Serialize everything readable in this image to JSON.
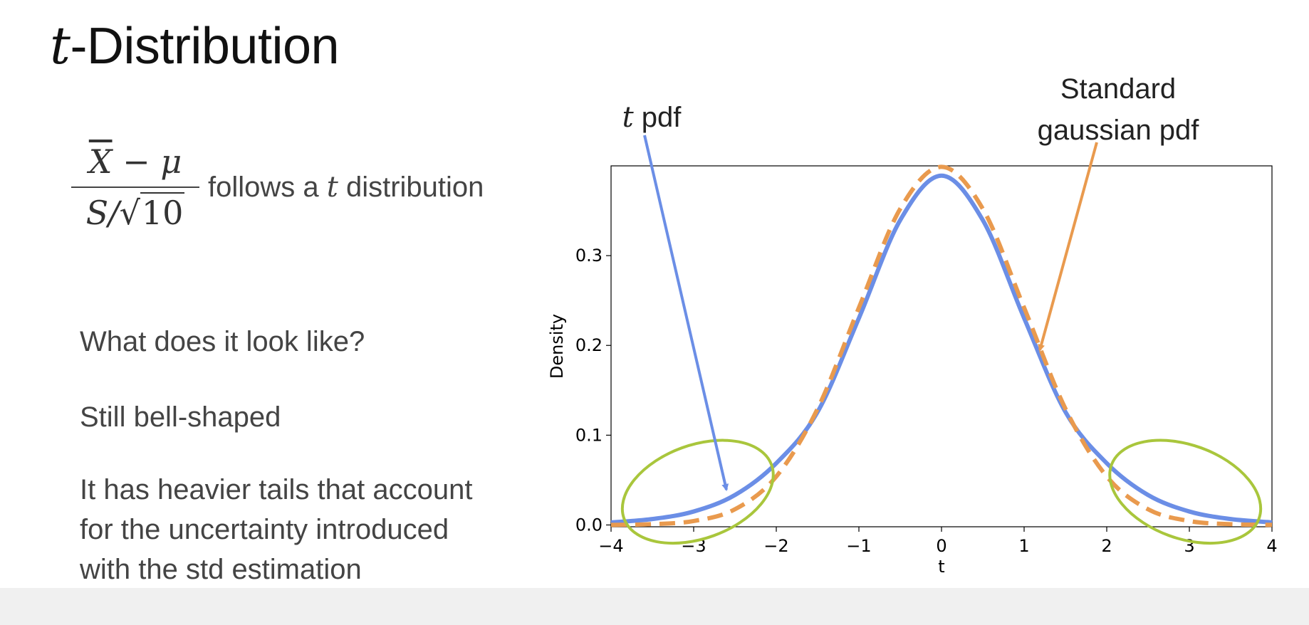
{
  "slide": {
    "title_italic": "t",
    "title_rest": "-Distribution",
    "formula": {
      "numerator_var": "X",
      "numerator_rest": " − μ",
      "denominator_prefix": "S/",
      "sqrt_symbol": "√",
      "sqrt_arg": "10"
    },
    "follows_a": "follows a ",
    "follows_t": "t",
    "follows_rest": " distribution",
    "q1": "What does it look like?",
    "q2": "Still bell-shaped",
    "q3_lines": [
      "It has heavier tails that account",
      "for the uncertainty introduced",
      "with the std estimation"
    ]
  },
  "annotations": {
    "t_pdf_italic": "t",
    "t_pdf_rest": " pdf",
    "gaussian_line1": "Standard",
    "gaussian_line2": "gaussian pdf"
  },
  "colors": {
    "t_pdf": "#6b8ee6",
    "gaussian": "#e99a4e",
    "ellipse": "#a9c63c",
    "axis": "#000000"
  },
  "chart_data": {
    "type": "line",
    "xlabel": "t",
    "ylabel": "Density",
    "xlim": [
      -4,
      4
    ],
    "ylim": [
      -0.002,
      0.4
    ],
    "xticks": [
      -4,
      -3,
      -2,
      -1,
      0,
      1,
      2,
      3,
      4
    ],
    "xtick_labels": [
      "−4",
      "−3",
      "−2",
      "−1",
      "0",
      "1",
      "2",
      "3",
      "4"
    ],
    "yticks": [
      0.0,
      0.1,
      0.2,
      0.3
    ],
    "ytick_labels": [
      "0.0",
      "0.1",
      "0.2",
      "0.3"
    ],
    "grid": false,
    "series": [
      {
        "name": "t pdf",
        "style": "solid",
        "color": "#6b8ee6",
        "x": [
          -4,
          -3.5,
          -3,
          -2.5,
          -2,
          -1.5,
          -1,
          -0.5,
          0,
          0.5,
          1,
          1.5,
          2,
          2.5,
          3,
          3.5,
          4
        ],
        "y": [
          0.0029,
          0.0066,
          0.015,
          0.0334,
          0.0688,
          0.1259,
          0.2304,
          0.3395,
          0.3891,
          0.3395,
          0.2304,
          0.1259,
          0.0688,
          0.0334,
          0.015,
          0.0066,
          0.0029
        ]
      },
      {
        "name": "Standard gaussian pdf",
        "style": "dashed",
        "color": "#e99a4e",
        "x": [
          -4,
          -3.5,
          -3,
          -2.5,
          -2,
          -1.5,
          -1,
          -0.5,
          0,
          0.5,
          1,
          1.5,
          2,
          2.5,
          3,
          3.5,
          4
        ],
        "y": [
          0.0001,
          0.0009,
          0.0044,
          0.0175,
          0.054,
          0.1295,
          0.242,
          0.3521,
          0.3989,
          0.3521,
          0.242,
          0.1295,
          0.054,
          0.0175,
          0.0044,
          0.0009,
          0.0001
        ]
      }
    ],
    "highlight_ellipses": [
      {
        "center": [
          -2.95,
          0.037
        ],
        "rx": 0.95,
        "ry": 0.052,
        "rotation_deg": -20
      },
      {
        "center": [
          2.95,
          0.037
        ],
        "rx": 0.95,
        "ry": 0.052,
        "rotation_deg": 20
      }
    ]
  }
}
